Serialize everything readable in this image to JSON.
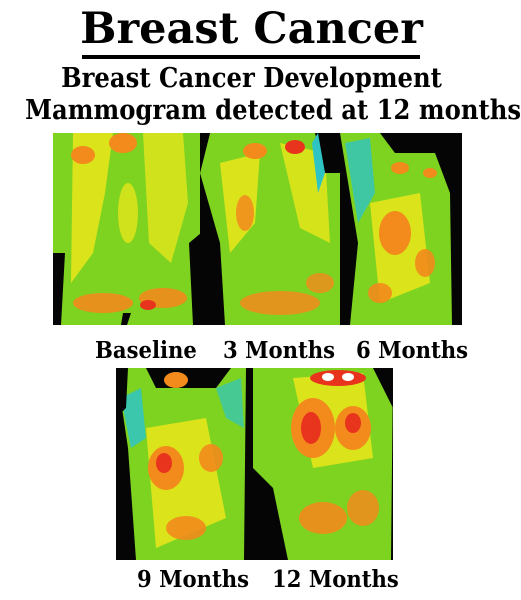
{
  "header": {
    "title": "Breast Cancer",
    "subtitle_line1": "Breast Cancer Development",
    "subtitle_line2": "Mammogram detected at 12 months"
  },
  "thermograms": [
    {
      "label": "Baseline"
    },
    {
      "label": "3 Months"
    },
    {
      "label": "6 Months"
    },
    {
      "label": "9 Months"
    },
    {
      "label": "12 Months"
    }
  ],
  "colors": {
    "background": "#ffffff",
    "text": "#000000",
    "thermal_base": "#7ed321",
    "thermal_yellow": "#f3e81a",
    "thermal_orange": "#f28a1c",
    "thermal_red": "#e8341c",
    "thermal_cool": "#2fc4c4",
    "thermal_background": "#050505"
  }
}
